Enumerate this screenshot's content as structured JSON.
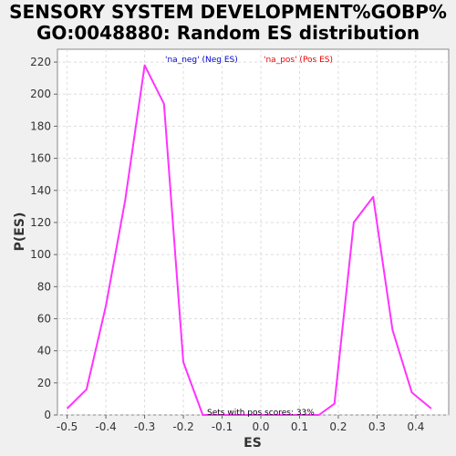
{
  "chart_data": {
    "type": "line",
    "title": [
      "SENSORY SYSTEM DEVELOPMENT%GOBP%",
      "GO:0048880: Random ES distribution"
    ],
    "xlabel": "ES",
    "ylabel": "P(ES)",
    "xlim": [
      -0.525,
      0.485
    ],
    "ylim": [
      0,
      228
    ],
    "xticks": [
      -0.5,
      -0.4,
      -0.3,
      -0.2,
      -0.1,
      0.0,
      0.1,
      0.2,
      0.3,
      0.4
    ],
    "xtick_labels": [
      "-0.5",
      "-0.4",
      "-0.3",
      "-0.2",
      "-0.1",
      "0.0",
      "0.1",
      "0.2",
      "0.3",
      "0.4"
    ],
    "yticks": [
      0,
      20,
      40,
      60,
      80,
      100,
      120,
      140,
      160,
      180,
      200,
      220
    ],
    "grid": true,
    "legend_position": "top",
    "legend": [
      {
        "label": "'na_neg' (Neg ES)",
        "color": "#0000cc"
      },
      {
        "label": "'na_pos' (Pos ES)",
        "color": "#ee0000"
      }
    ],
    "line_color": "#ff33ff",
    "series": [
      {
        "x": [
          -0.5,
          -0.45,
          -0.4,
          -0.35,
          -0.3,
          -0.25,
          -0.2,
          -0.15,
          0.15,
          0.19,
          0.24,
          0.29,
          0.34,
          0.39,
          0.44
        ],
        "y": [
          4,
          16,
          68,
          134,
          218,
          194,
          33,
          0,
          0,
          7,
          120,
          136,
          53,
          14,
          4
        ]
      }
    ],
    "annotation": "Sets with pos scores: 33%"
  }
}
